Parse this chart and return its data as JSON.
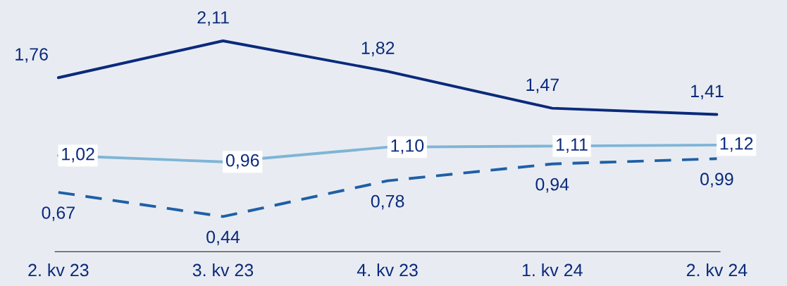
{
  "chart_data": {
    "type": "line",
    "categories": [
      "2. kv 23",
      "3. kv 23",
      "4. kv 23",
      "1. kv 24",
      "2. kv 24"
    ],
    "series": [
      {
        "color": "#0b2a7c",
        "values": [
          1.76,
          2.11,
          1.82,
          1.47,
          1.41
        ],
        "value_labels": [
          "1,76",
          "2,11",
          "1,82",
          "1,47",
          "1,41"
        ],
        "line_style": "solid"
      },
      {
        "color": "#7fb5d6",
        "values": [
          1.02,
          0.96,
          1.1,
          1.11,
          1.12
        ],
        "value_labels": [
          "1,02",
          "0,96",
          "1,10",
          "1,11",
          "1,12"
        ],
        "line_style": "solid"
      },
      {
        "color": "#1f5fa6",
        "values": [
          0.67,
          0.44,
          0.78,
          0.94,
          0.99
        ],
        "value_labels": [
          "0,67",
          "0,44",
          "0,78",
          "0,94",
          "0,99"
        ],
        "line_style": "dashed"
      }
    ],
    "grid": false,
    "legend": false,
    "marker": "none"
  }
}
